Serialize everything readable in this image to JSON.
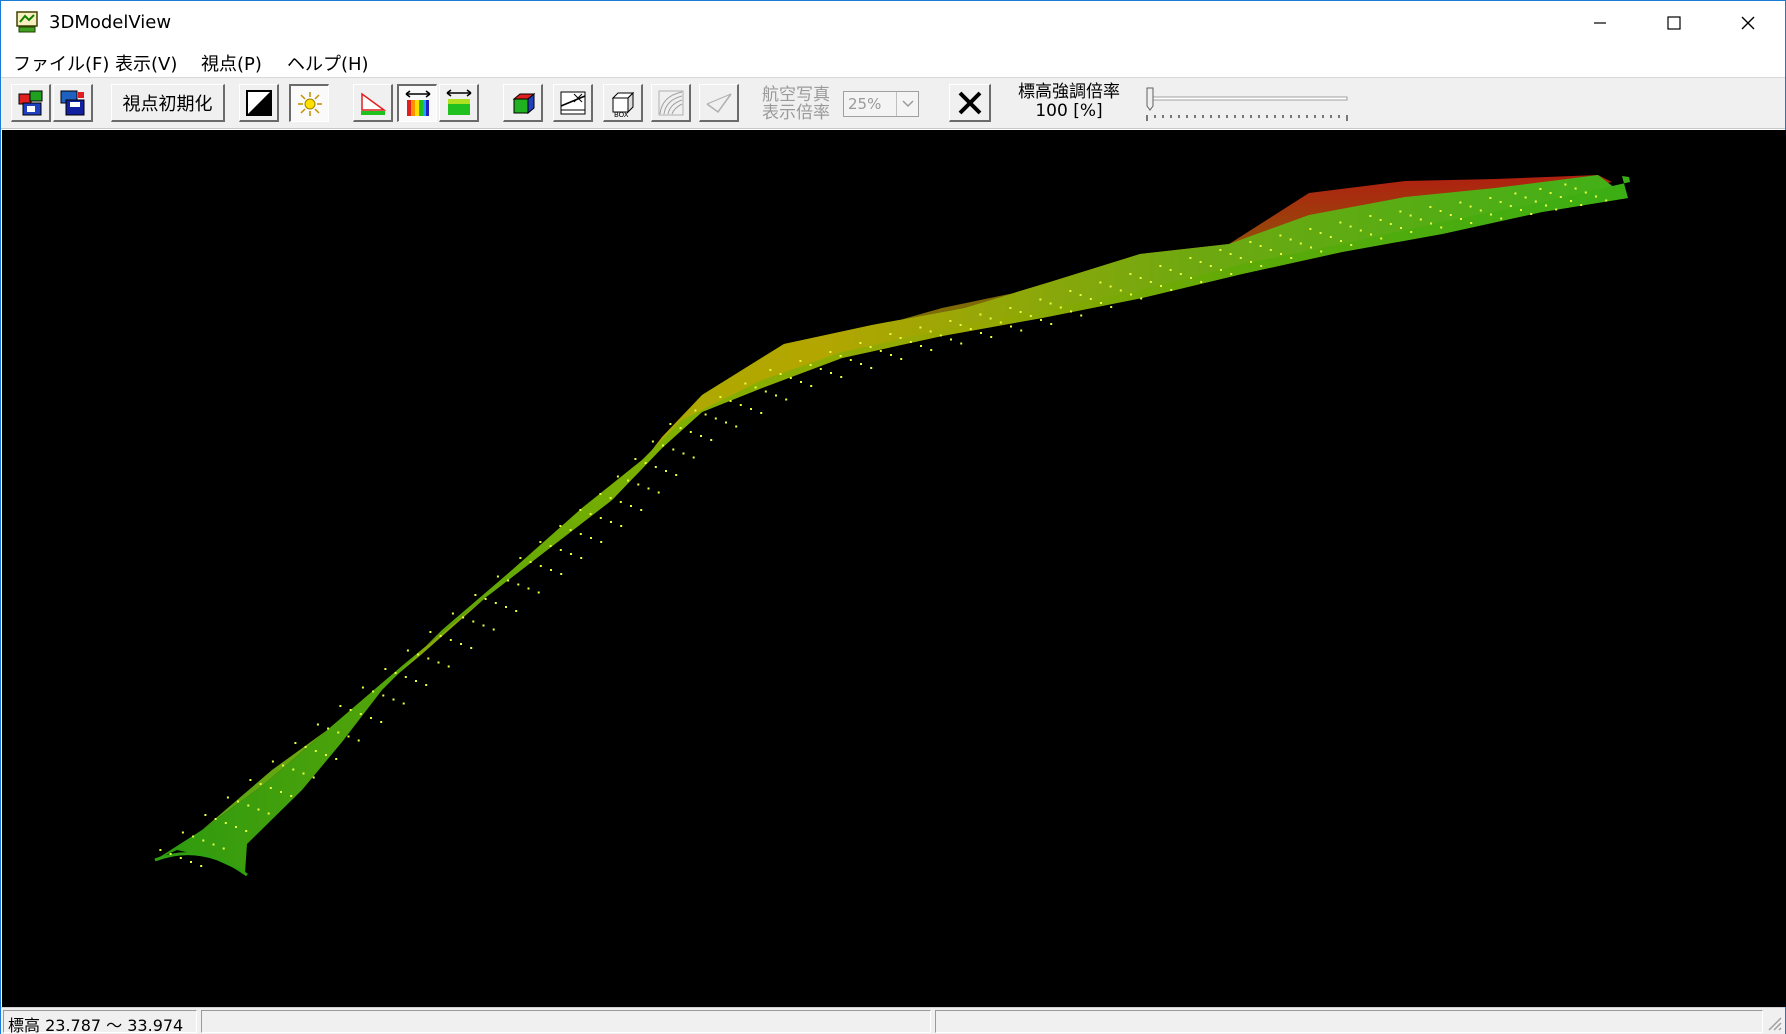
{
  "window": {
    "title": "3DModelView"
  },
  "menu": {
    "items": [
      "ファイル(F)",
      "表示(V)",
      "視点(P)",
      "ヘルプ(H)"
    ]
  },
  "toolbar": {
    "reset_view_label": "視点初期化",
    "aerial_photo_label_line1": "航空写真",
    "aerial_photo_label_line2": "表示倍率",
    "aerial_zoom_value": "25%",
    "elevation_label_line1": "標高強調倍率",
    "elevation_label_line2": "100 [%]",
    "elevation_emphasis_percent": 100
  },
  "status": {
    "elevation_range": "標高 23.787 〜 33.974",
    "pane2": "",
    "pane3": ""
  },
  "colors": {
    "viewport_bg": "#000000",
    "low_elevation": "#3fae1a",
    "mid_elevation": "#b0b400",
    "high_elevation": "#a8240e",
    "point_marker": "#e8ff40"
  }
}
